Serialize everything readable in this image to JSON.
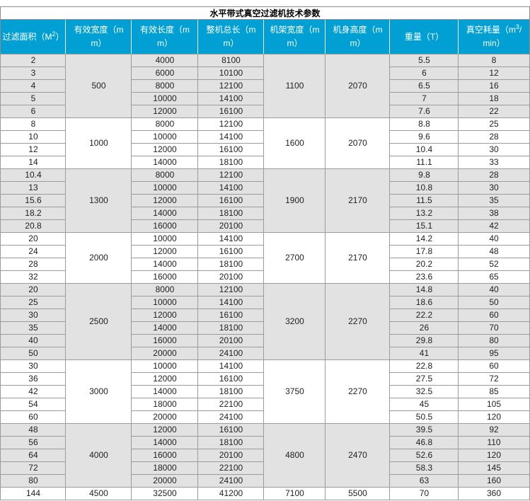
{
  "colors": {
    "header_bg": "#00A0D4",
    "header_text": "#FFFFFF",
    "shaded_row": "#E2E2E2",
    "grid_border": "#9B9B9B",
    "outer_border": "#8C8C8C",
    "title_text": "#000000",
    "cell_text": "#1F1F1F"
  },
  "chart_data": {
    "type": "table",
    "title": "水平带式真空过滤机技术参数",
    "columns": [
      {
        "pre": "过滤面积（M",
        "sup": "2",
        "post": "）"
      },
      {
        "pre": "有效宽度（mm）",
        "sup": "",
        "post": ""
      },
      {
        "pre": "有效长度（mm）",
        "sup": "",
        "post": ""
      },
      {
        "pre": "整机总长（mm）",
        "sup": "",
        "post": ""
      },
      {
        "pre": "机架宽度（mm）",
        "sup": "",
        "post": ""
      },
      {
        "pre": "机身高度（mm）",
        "sup": "",
        "post": ""
      },
      {
        "pre": "重量（T）",
        "sup": "",
        "post": ""
      },
      {
        "pre": "真空耗量（m",
        "sup": "3",
        "post": "/min）"
      }
    ],
    "column_keys": [
      "filter-area",
      "effective-width",
      "effective-length",
      "total-length",
      "frame-width",
      "body-height",
      "weight",
      "vacuum-consumption"
    ],
    "groups": [
      {
        "effective_width": "500",
        "frame_width": "1100",
        "body_height": "2070",
        "rows": [
          [
            "2",
            "4000",
            "8100",
            "5.5",
            "8"
          ],
          [
            "3",
            "6000",
            "10100",
            "6",
            "12"
          ],
          [
            "4",
            "8000",
            "12100",
            "6.5",
            "16"
          ],
          [
            "5",
            "10000",
            "14100",
            "7",
            "18"
          ],
          [
            "6",
            "12000",
            "16100",
            "7.6",
            "22"
          ]
        ]
      },
      {
        "effective_width": "1000",
        "frame_width": "1600",
        "body_height": "2070",
        "rows": [
          [
            "8",
            "8000",
            "12100",
            "8.8",
            "25"
          ],
          [
            "10",
            "10000",
            "14100",
            "9.6",
            "28"
          ],
          [
            "12",
            "12000",
            "16100",
            "10.4",
            "30"
          ],
          [
            "14",
            "14000",
            "18100",
            "11.1",
            "33"
          ]
        ]
      },
      {
        "effective_width": "1300",
        "frame_width": "1900",
        "body_height": "2170",
        "rows": [
          [
            "10.4",
            "8000",
            "12100",
            "9.8",
            "28"
          ],
          [
            "13",
            "10000",
            "14100",
            "10.8",
            "30"
          ],
          [
            "15.6",
            "12000",
            "16100",
            "11.5",
            "35"
          ],
          [
            "18.2",
            "14000",
            "18100",
            "13.2",
            "38"
          ],
          [
            "20.8",
            "16000",
            "20100",
            "15.1",
            "42"
          ]
        ]
      },
      {
        "effective_width": "2000",
        "frame_width": "2700",
        "body_height": "2170",
        "rows": [
          [
            "20",
            "10000",
            "14100",
            "14.2",
            "40"
          ],
          [
            "24",
            "12000",
            "16100",
            "17.8",
            "48"
          ],
          [
            "28",
            "14000",
            "18100",
            "20.2",
            "52"
          ],
          [
            "32",
            "16000",
            "20100",
            "23.6",
            "65"
          ]
        ]
      },
      {
        "effective_width": "2500",
        "frame_width": "3200",
        "body_height": "2270",
        "rows": [
          [
            "20",
            "8000",
            "12100",
            "14.8",
            "40"
          ],
          [
            "25",
            "10000",
            "14100",
            "18.6",
            "50"
          ],
          [
            "30",
            "12000",
            "16100",
            "22.2",
            "60"
          ],
          [
            "35",
            "14000",
            "18100",
            "26",
            "70"
          ],
          [
            "40",
            "16000",
            "20100",
            "29.8",
            "80"
          ],
          [
            "50",
            "20000",
            "24100",
            "41",
            "95"
          ]
        ]
      },
      {
        "effective_width": "3000",
        "frame_width": "3750",
        "body_height": "2270",
        "rows": [
          [
            "30",
            "10000",
            "14100",
            "22.8",
            "60"
          ],
          [
            "36",
            "12000",
            "16100",
            "27.5",
            "72"
          ],
          [
            "42",
            "14000",
            "18100",
            "32.5",
            "85"
          ],
          [
            "54",
            "18000",
            "22100",
            "45",
            "105"
          ],
          [
            "60",
            "20000",
            "24100",
            "50.5",
            "120"
          ]
        ]
      },
      {
        "effective_width": "4000",
        "frame_width": "4800",
        "body_height": "2470",
        "rows": [
          [
            "48",
            "12000",
            "16100",
            "39.5",
            "92"
          ],
          [
            "56",
            "14000",
            "18100",
            "46.8",
            "110"
          ],
          [
            "64",
            "16000",
            "20100",
            "52.6",
            "120"
          ],
          [
            "72",
            "18000",
            "22100",
            "58.3",
            "145"
          ],
          [
            "80",
            "20000",
            "24100",
            "63",
            "160"
          ]
        ]
      },
      {
        "effective_width": "4500",
        "frame_width": "7100",
        "body_height": "5500",
        "rows": [
          [
            "144",
            "32500",
            "41200",
            "70",
            "360"
          ]
        ]
      }
    ]
  }
}
